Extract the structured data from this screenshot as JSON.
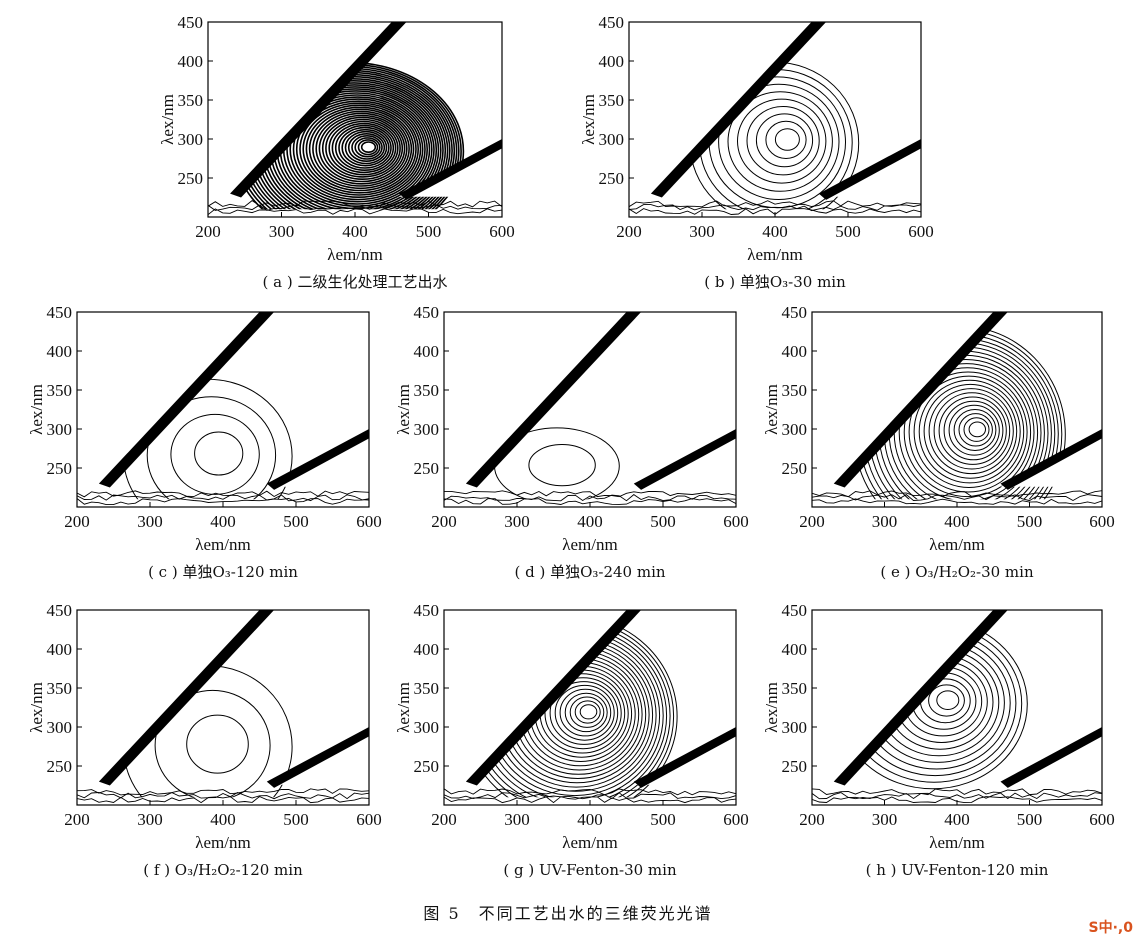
{
  "figure_caption": "图 5　不同工艺出水的三维荧光光谱",
  "watermark": "S中·,0",
  "chart_data": [
    {
      "type": "contour",
      "caption": "( a ) 二级生化处理工艺出水",
      "xlabel": "λem/nm",
      "ylabel": "λex/nm",
      "xlim": [
        200,
        600
      ],
      "ylim": [
        200,
        450
      ],
      "xticks": [
        200,
        300,
        400,
        500,
        600
      ],
      "yticks": [
        250,
        300,
        350,
        400,
        450
      ],
      "peaks": [
        {
          "em": 420,
          "ex": 290,
          "levels": 40,
          "rx": 150,
          "ry": 110
        }
      ]
    },
    {
      "type": "contour",
      "caption": "( b ) 单独O₃-30 min",
      "xlabel": "λem/nm",
      "ylabel": "λex/nm",
      "xlim": [
        200,
        600
      ],
      "ylim": [
        200,
        450
      ],
      "xticks": [
        200,
        300,
        400,
        500,
        600
      ],
      "yticks": [
        250,
        300,
        350,
        400,
        450
      ],
      "peaks": [
        {
          "em": 420,
          "ex": 300,
          "levels": 10,
          "rx": 110,
          "ry": 100
        }
      ]
    },
    {
      "type": "contour",
      "caption": "( c ) 单独O₃-120 min",
      "xlabel": "λem/nm",
      "ylabel": "λex/nm",
      "xlim": [
        200,
        600
      ],
      "ylim": [
        200,
        450
      ],
      "xticks": [
        200,
        300,
        400,
        500,
        600
      ],
      "yticks": [
        250,
        300,
        350,
        400,
        450
      ],
      "peaks": [
        {
          "em": 400,
          "ex": 270,
          "levels": 4,
          "rx": 110,
          "ry": 95
        }
      ]
    },
    {
      "type": "contour",
      "caption": "( d ) 单独O₃-240 min",
      "xlabel": "λem/nm",
      "ylabel": "λex/nm",
      "xlim": [
        200,
        600
      ],
      "ylim": [
        200,
        450
      ],
      "xticks": [
        200,
        300,
        400,
        500,
        600
      ],
      "yticks": [
        250,
        300,
        350,
        400,
        450
      ],
      "peaks": [
        {
          "em": 370,
          "ex": 255,
          "levels": 2,
          "rx": 80,
          "ry": 45
        }
      ]
    },
    {
      "type": "contour",
      "caption": "( e ) O₃/H₂O₂-30 min",
      "xlabel": "λem/nm",
      "ylabel": "λex/nm",
      "xlim": [
        200,
        600
      ],
      "ylim": [
        200,
        450
      ],
      "xticks": [
        200,
        300,
        400,
        500,
        600
      ],
      "yticks": [
        250,
        300,
        350,
        400,
        450
      ],
      "peaks": [
        {
          "em": 430,
          "ex": 300,
          "levels": 24,
          "rx": 140,
          "ry": 135
        }
      ]
    },
    {
      "type": "contour",
      "caption": "( f ) O₃/H₂O₂-120 min",
      "xlabel": "λem/nm",
      "ylabel": "λex/nm",
      "xlim": [
        200,
        600
      ],
      "ylim": [
        200,
        450
      ],
      "xticks": [
        200,
        300,
        400,
        500,
        600
      ],
      "yticks": [
        250,
        300,
        350,
        400,
        450
      ],
      "peaks": [
        {
          "em": 400,
          "ex": 280,
          "levels": 3,
          "rx": 110,
          "ry": 100
        }
      ]
    },
    {
      "type": "contour",
      "caption": "( g ) UV-Fenton-30 min",
      "xlabel": "λem/nm",
      "ylabel": "λex/nm",
      "xlim": [
        200,
        600
      ],
      "ylim": [
        200,
        450
      ],
      "xticks": [
        200,
        300,
        400,
        500,
        600
      ],
      "yticks": [
        250,
        300,
        350,
        400,
        450
      ],
      "peaks": [
        {
          "em": 400,
          "ex": 320,
          "levels": 24,
          "rx": 140,
          "ry": 125
        }
      ]
    },
    {
      "type": "contour",
      "caption": "( h ) UV-Fenton-120 min",
      "xlabel": "λem/nm",
      "ylabel": "λex/nm",
      "xlim": [
        200,
        600
      ],
      "ylim": [
        200,
        450
      ],
      "xticks": [
        200,
        300,
        400,
        500,
        600
      ],
      "yticks": [
        250,
        300,
        350,
        400,
        450
      ],
      "peaks": [
        {
          "em": 390,
          "ex": 335,
          "levels": 13,
          "rx": 125,
          "ry": 105
        }
      ]
    }
  ]
}
